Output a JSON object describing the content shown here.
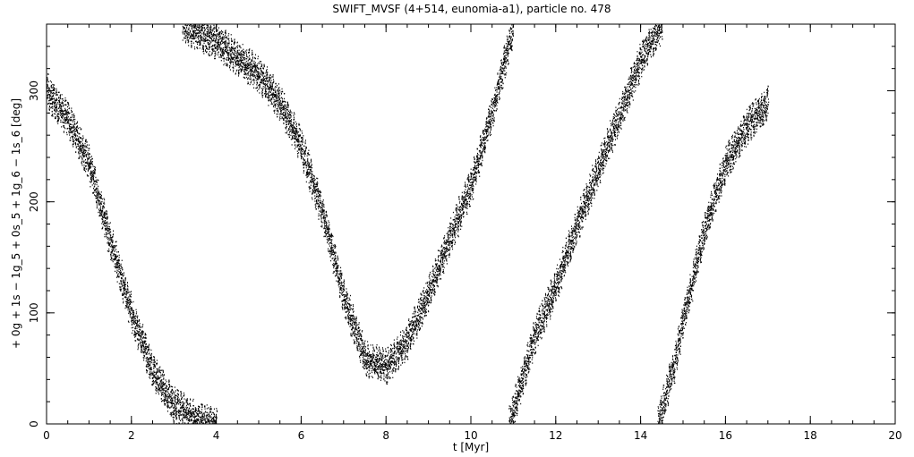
{
  "chart_data": {
    "type": "scatter",
    "title": "SWIFT_MVSF (4+514, eunomia-a1), particle no. 478",
    "xlabel": "t [Myr]",
    "ylabel": "+ 0g + 1s − 1g_5 + 0s_5 + 1g_6 − 1s_6 [deg]",
    "xlim": [
      0,
      20
    ],
    "ylim": [
      0,
      360
    ],
    "x_ticks": [
      0,
      2,
      4,
      6,
      8,
      10,
      12,
      14,
      16,
      18,
      20
    ],
    "y_ticks": [
      0,
      100,
      200,
      300
    ],
    "grid": false,
    "series": [
      {
        "segment": 1,
        "x": [
          0.0,
          0.5,
          1.0,
          1.5,
          2.0,
          2.5,
          3.0,
          3.5,
          4.0
        ],
        "values": [
          300,
          275,
          235,
          165,
          100,
          48,
          18,
          4,
          0
        ]
      },
      {
        "segment": 2,
        "x": [
          3.2,
          4.0,
          5.0,
          5.5,
          6.0,
          6.5,
          7.0,
          7.5,
          8.0,
          8.5,
          9.0,
          9.5,
          10.0,
          10.5,
          11.0
        ],
        "values": [
          360,
          345,
          315,
          290,
          250,
          190,
          115,
          60,
          52,
          75,
          118,
          168,
          215,
          282,
          360
        ]
      },
      {
        "segment": 3,
        "x": [
          10.9,
          11.5,
          12.0,
          12.5,
          13.0,
          13.5,
          14.0,
          14.5
        ],
        "values": [
          0,
          80,
          125,
          180,
          230,
          278,
          328,
          360
        ]
      },
      {
        "segment": 4,
        "x": [
          14.4,
          14.8,
          15.0,
          15.5,
          16.0,
          16.5,
          17.0
        ],
        "values": [
          0,
          55,
          95,
          175,
          235,
          268,
          290
        ]
      }
    ]
  }
}
